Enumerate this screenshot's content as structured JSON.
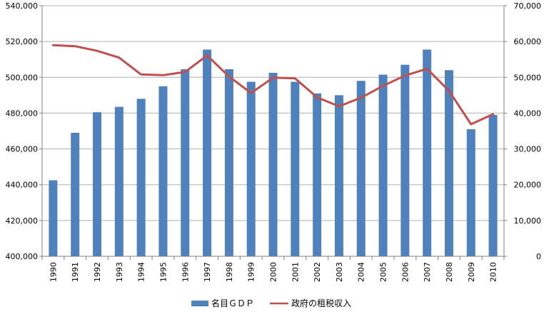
{
  "chart_data": {
    "type": "bar",
    "categories": [
      "1990",
      "1991",
      "1992",
      "1993",
      "1994",
      "1995",
      "1996",
      "1997",
      "1998",
      "1999",
      "2000",
      "2001",
      "2002",
      "2003",
      "2004",
      "2005",
      "2006",
      "2007",
      "2008",
      "2009",
      "2010"
    ],
    "series": [
      {
        "name": "名目ＧＤＰ",
        "type": "bar",
        "axis": "left",
        "color": "#4f81bd",
        "values": [
          442500,
          469000,
          480500,
          483500,
          488000,
          495000,
          504500,
          515500,
          504500,
          497500,
          502500,
          497500,
          491000,
          490000,
          498000,
          501500,
          507000,
          515500,
          504000,
          471000,
          479000
        ]
      },
      {
        "name": "政府の租税収入",
        "type": "line",
        "axis": "right",
        "color": "#c0504d",
        "values": [
          59000,
          58700,
          57400,
          55500,
          50800,
          50600,
          51500,
          56100,
          50200,
          45600,
          49900,
          49700,
          44400,
          41900,
          44300,
          47600,
          50500,
          52400,
          46200,
          36900,
          39700
        ]
      }
    ],
    "y_left": {
      "min": 400000,
      "max": 540000,
      "step": 20000,
      "tick_labels": [
        "400,000",
        "420,000",
        "440,000",
        "460,000",
        "480,000",
        "500,000",
        "520,000",
        "540,000"
      ]
    },
    "y_right": {
      "min": 0,
      "max": 70000,
      "step": 10000,
      "tick_labels": [
        "0",
        "10,000",
        "20,000",
        "30,000",
        "40,000",
        "50,000",
        "60,000",
        "70,000"
      ]
    },
    "grid": true,
    "legend": "bottom"
  },
  "colors": {
    "bar": "#4f81bd",
    "line": "#c0504d",
    "grid": "#b0b0b0",
    "axis": "#808080"
  }
}
